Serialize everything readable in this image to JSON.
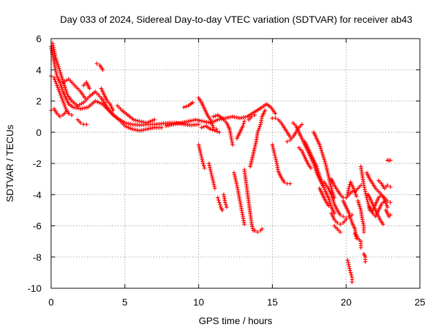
{
  "chart_data": {
    "type": "scatter",
    "title": "Day 033 of 2024, Sidereal Day-to-day VTEC variation (SDTVAR) for receiver ab43",
    "xlabel": "GPS time / hours",
    "ylabel": "SDTVAR / TECUs",
    "xlim": [
      0,
      25
    ],
    "ylim": [
      -10,
      6
    ],
    "xticks": [
      0,
      5,
      10,
      15,
      20,
      25
    ],
    "yticks": [
      -10,
      -8,
      -6,
      -4,
      -2,
      0,
      2,
      4,
      6
    ],
    "grid": true,
    "marker": "+",
    "series_color": "#ff0000",
    "segments": [
      [
        [
          0.0,
          5.5
        ],
        [
          0.1,
          5.0
        ],
        [
          0.2,
          4.5
        ],
        [
          0.3,
          4.0
        ],
        [
          0.4,
          3.6
        ],
        [
          0.6,
          3.2
        ],
        [
          0.8,
          2.6
        ],
        [
          1.0,
          2.2
        ],
        [
          1.2,
          1.8
        ],
        [
          1.5,
          1.6
        ],
        [
          2.0,
          1.5
        ],
        [
          2.5,
          1.6
        ],
        [
          3.0,
          2.0
        ],
        [
          3.5,
          1.8
        ],
        [
          4.0,
          1.3
        ],
        [
          4.5,
          0.9
        ],
        [
          5.0,
          0.6
        ],
        [
          5.5,
          0.5
        ],
        [
          6.0,
          0.45
        ],
        [
          6.5,
          0.5
        ],
        [
          7.0,
          0.5
        ],
        [
          7.5,
          0.55
        ],
        [
          8.0,
          0.6
        ],
        [
          8.5,
          0.6
        ],
        [
          9.0,
          0.5
        ],
        [
          9.5,
          0.45
        ],
        [
          10.0,
          0.5
        ]
      ],
      [
        [
          0.1,
          5.7
        ],
        [
          0.2,
          5.3
        ],
        [
          0.3,
          4.8
        ],
        [
          0.5,
          4.2
        ],
        [
          0.7,
          3.6
        ],
        [
          0.9,
          3.0
        ],
        [
          1.1,
          2.4
        ],
        [
          1.4,
          2.0
        ],
        [
          1.8,
          1.7
        ],
        [
          2.2,
          1.9
        ],
        [
          2.6,
          2.3
        ],
        [
          3.0,
          2.6
        ],
        [
          3.4,
          2.2
        ],
        [
          3.8,
          1.6
        ],
        [
          4.2,
          1.1
        ],
        [
          4.6,
          0.8
        ],
        [
          5.0,
          0.4
        ],
        [
          5.5,
          0.2
        ],
        [
          6.0,
          0.1
        ],
        [
          6.5,
          0.2
        ],
        [
          7.0,
          0.3
        ],
        [
          7.5,
          0.3
        ]
      ],
      [
        [
          0.0,
          3.6
        ],
        [
          0.2,
          3.5
        ],
        [
          0.4,
          3.0
        ],
        [
          0.6,
          2.5
        ],
        [
          0.8,
          2.0
        ],
        [
          1.0,
          1.5
        ],
        [
          1.2,
          1.2
        ],
        [
          1.4,
          1.1
        ]
      ],
      [
        [
          0.0,
          1.4
        ],
        [
          0.2,
          1.5
        ],
        [
          0.4,
          1.2
        ],
        [
          0.6,
          1.0
        ],
        [
          0.8,
          1.1
        ],
        [
          1.0,
          1.3
        ],
        [
          1.2,
          1.2
        ]
      ],
      [
        [
          0.8,
          3.2
        ],
        [
          1.2,
          3.4
        ],
        [
          1.6,
          3.0
        ],
        [
          2.0,
          2.6
        ],
        [
          2.3,
          2.2
        ]
      ],
      [
        [
          1.8,
          0.8
        ],
        [
          2.0,
          0.6
        ],
        [
          2.2,
          0.5
        ],
        [
          2.4,
          0.5
        ]
      ],
      [
        [
          2.2,
          3.0
        ],
        [
          2.4,
          3.2
        ],
        [
          2.6,
          2.8
        ]
      ],
      [
        [
          3.1,
          4.4
        ],
        [
          3.3,
          4.3
        ],
        [
          3.5,
          4.0
        ]
      ],
      [
        [
          3.4,
          2.8
        ],
        [
          3.6,
          2.4
        ],
        [
          3.8,
          2.0
        ],
        [
          4.0,
          1.8
        ],
        [
          4.2,
          1.4
        ]
      ],
      [
        [
          4.5,
          1.7
        ],
        [
          4.8,
          1.4
        ],
        [
          5.2,
          1.1
        ],
        [
          5.6,
          0.8
        ],
        [
          6.0,
          0.7
        ],
        [
          6.5,
          0.6
        ],
        [
          7.0,
          0.8
        ]
      ],
      [
        [
          7.8,
          0.4
        ],
        [
          8.3,
          0.5
        ],
        [
          8.8,
          0.6
        ],
        [
          9.3,
          0.7
        ],
        [
          9.8,
          0.8
        ],
        [
          10.3,
          0.7
        ],
        [
          10.8,
          0.6
        ],
        [
          11.3,
          0.8
        ],
        [
          11.8,
          0.9
        ],
        [
          12.3,
          1.0
        ],
        [
          12.8,
          0.9
        ],
        [
          13.3,
          1.0
        ],
        [
          13.8,
          1.3
        ],
        [
          14.3,
          1.6
        ],
        [
          14.6,
          1.8
        ],
        [
          14.9,
          1.6
        ],
        [
          15.2,
          1.2
        ]
      ],
      [
        [
          9.0,
          1.6
        ],
        [
          9.3,
          1.7
        ],
        [
          9.6,
          1.9
        ]
      ],
      [
        [
          10.0,
          2.2
        ],
        [
          10.2,
          1.9
        ],
        [
          10.4,
          1.5
        ],
        [
          10.6,
          1.1
        ],
        [
          10.8,
          0.8
        ],
        [
          11.0,
          0.3
        ],
        [
          11.2,
          0.2
        ]
      ],
      [
        [
          10.2,
          0.3
        ],
        [
          10.5,
          0.4
        ],
        [
          10.8,
          0.2
        ],
        [
          11.1,
          0.1
        ],
        [
          11.4,
          0.0
        ]
      ],
      [
        [
          10.0,
          -0.8
        ],
        [
          10.1,
          -1.2
        ],
        [
          10.2,
          -1.6
        ],
        [
          10.3,
          -2.0
        ],
        [
          10.4,
          -2.3
        ]
      ],
      [
        [
          10.7,
          -2.0
        ],
        [
          10.8,
          -2.4
        ],
        [
          10.9,
          -2.8
        ],
        [
          11.0,
          -3.2
        ],
        [
          11.1,
          -3.6
        ]
      ],
      [
        [
          11.0,
          1.0
        ],
        [
          11.3,
          1.1
        ],
        [
          11.6,
          0.9
        ],
        [
          11.9,
          0.6
        ],
        [
          12.1,
          0.2
        ],
        [
          12.2,
          -0.3
        ],
        [
          12.3,
          -0.8
        ]
      ],
      [
        [
          11.3,
          -4.2
        ],
        [
          11.4,
          -4.5
        ],
        [
          11.5,
          -4.8
        ],
        [
          11.6,
          -5.0
        ]
      ],
      [
        [
          11.7,
          -4.0
        ],
        [
          11.8,
          -4.5
        ],
        [
          11.9,
          -4.8
        ]
      ],
      [
        [
          12.4,
          -2.6
        ],
        [
          12.5,
          -3.0
        ],
        [
          12.6,
          -3.4
        ],
        [
          12.7,
          -3.9
        ],
        [
          12.8,
          -4.4
        ],
        [
          12.9,
          -4.9
        ],
        [
          13.0,
          -5.4
        ],
        [
          13.1,
          -5.9
        ]
      ],
      [
        [
          12.6,
          -0.4
        ],
        [
          12.8,
          0.0
        ],
        [
          13.0,
          0.4
        ],
        [
          13.1,
          0.7
        ]
      ],
      [
        [
          13.1,
          -2.4
        ],
        [
          13.2,
          -3.1
        ],
        [
          13.3,
          -3.8
        ],
        [
          13.4,
          -4.5
        ],
        [
          13.5,
          -5.2
        ],
        [
          13.6,
          -5.9
        ],
        [
          13.7,
          -6.3
        ],
        [
          13.8,
          -6.3
        ]
      ],
      [
        [
          13.4,
          0.8
        ],
        [
          13.6,
          1.0
        ],
        [
          13.8,
          1.1
        ]
      ],
      [
        [
          13.5,
          -2.2
        ],
        [
          13.7,
          -1.4
        ],
        [
          13.9,
          -0.6
        ],
        [
          14.0,
          0.0
        ],
        [
          14.2,
          0.5
        ],
        [
          14.3,
          1.0
        ],
        [
          14.5,
          1.4
        ]
      ],
      [
        [
          13.8,
          -6.3
        ],
        [
          14.0,
          -6.4
        ],
        [
          14.2,
          -6.3
        ],
        [
          14.3,
          -6.2
        ]
      ],
      [
        [
          15.0,
          0.9
        ],
        [
          15.2,
          0.9
        ],
        [
          15.4,
          0.8
        ],
        [
          15.6,
          0.6
        ],
        [
          15.8,
          0.3
        ],
        [
          16.0,
          0.0
        ],
        [
          16.2,
          -0.3
        ]
      ],
      [
        [
          15.0,
          -0.8
        ],
        [
          15.1,
          -1.2
        ],
        [
          15.2,
          -1.6
        ],
        [
          15.3,
          -2.0
        ],
        [
          15.4,
          -2.5
        ],
        [
          15.6,
          -2.9
        ],
        [
          15.8,
          -3.2
        ],
        [
          16.0,
          -3.3
        ],
        [
          16.2,
          -3.3
        ]
      ],
      [
        [
          16.0,
          -0.6
        ],
        [
          16.2,
          -0.5
        ],
        [
          16.4,
          -0.3
        ],
        [
          16.6,
          0.0
        ],
        [
          16.8,
          0.3
        ],
        [
          17.0,
          0.5
        ]
      ],
      [
        [
          16.4,
          0.6
        ],
        [
          16.6,
          0.4
        ],
        [
          16.8,
          0.0
        ],
        [
          17.0,
          -0.4
        ],
        [
          17.2,
          -0.8
        ],
        [
          17.4,
          -1.2
        ],
        [
          17.6,
          -1.6
        ],
        [
          17.8,
          -2.0
        ],
        [
          18.0,
          -2.6
        ],
        [
          18.2,
          -3.0
        ],
        [
          18.4,
          -3.4
        ]
      ],
      [
        [
          16.8,
          -1.0
        ],
        [
          17.0,
          -1.2
        ],
        [
          17.2,
          -1.6
        ],
        [
          17.4,
          -2.0
        ],
        [
          17.6,
          -2.3
        ]
      ],
      [
        [
          17.2,
          -0.6
        ],
        [
          17.4,
          -1.0
        ],
        [
          17.6,
          -1.4
        ],
        [
          17.8,
          -1.8
        ],
        [
          18.0,
          -2.2
        ],
        [
          18.2,
          -2.8
        ],
        [
          18.4,
          -3.3
        ],
        [
          18.6,
          -3.8
        ],
        [
          18.8,
          -4.2
        ],
        [
          19.0,
          -4.8
        ],
        [
          19.2,
          -5.2
        ]
      ],
      [
        [
          17.8,
          0.0
        ],
        [
          18.0,
          -0.4
        ],
        [
          18.2,
          -0.8
        ],
        [
          18.4,
          -1.4
        ],
        [
          18.6,
          -2.0
        ],
        [
          18.8,
          -2.8
        ],
        [
          19.0,
          -3.6
        ],
        [
          19.2,
          -4.2
        ]
      ],
      [
        [
          18.2,
          -3.6
        ],
        [
          18.4,
          -4.0
        ],
        [
          18.6,
          -4.4
        ],
        [
          18.8,
          -4.7
        ]
      ],
      [
        [
          19.0,
          -3.0
        ],
        [
          19.2,
          -3.4
        ],
        [
          19.4,
          -3.7
        ],
        [
          19.6,
          -4.0
        ],
        [
          19.8,
          -4.2
        ]
      ],
      [
        [
          19.0,
          -5.2
        ],
        [
          19.2,
          -5.6
        ],
        [
          19.4,
          -5.8
        ],
        [
          19.6,
          -5.9
        ],
        [
          19.8,
          -5.8
        ],
        [
          20.0,
          -5.6
        ]
      ],
      [
        [
          19.8,
          -4.4
        ],
        [
          20.0,
          -4.8
        ],
        [
          20.2,
          -5.2
        ],
        [
          20.4,
          -5.8
        ],
        [
          20.6,
          -6.2
        ],
        [
          20.7,
          -6.8
        ]
      ],
      [
        [
          20.1,
          -4.0
        ],
        [
          20.2,
          -3.5
        ],
        [
          20.3,
          -3.2
        ],
        [
          20.5,
          -3.6
        ],
        [
          20.7,
          -4.1
        ]
      ],
      [
        [
          20.1,
          -8.2
        ],
        [
          20.2,
          -8.6
        ],
        [
          20.3,
          -9.0
        ],
        [
          20.4,
          -9.3
        ],
        [
          20.4,
          -9.6
        ]
      ],
      [
        [
          20.6,
          -6.5
        ],
        [
          20.8,
          -6.8
        ],
        [
          21.0,
          -7.0
        ],
        [
          21.0,
          -7.4
        ]
      ],
      [
        [
          20.8,
          -4.4
        ],
        [
          21.0,
          -5.0
        ],
        [
          21.1,
          -5.6
        ],
        [
          21.2,
          -6.0
        ],
        [
          21.2,
          -6.4
        ]
      ],
      [
        [
          21.0,
          -2.2
        ],
        [
          21.1,
          -2.8
        ],
        [
          21.2,
          -3.4
        ],
        [
          21.3,
          -3.8
        ],
        [
          21.4,
          -4.2
        ],
        [
          21.5,
          -4.6
        ],
        [
          21.6,
          -5.0
        ]
      ],
      [
        [
          21.2,
          -7.8
        ],
        [
          21.3,
          -8.0
        ],
        [
          21.3,
          -8.3
        ]
      ],
      [
        [
          21.4,
          -2.6
        ],
        [
          21.6,
          -3.0
        ],
        [
          21.8,
          -3.3
        ],
        [
          22.0,
          -3.6
        ],
        [
          22.2,
          -3.8
        ],
        [
          22.4,
          -4.0
        ],
        [
          22.6,
          -4.2
        ],
        [
          22.8,
          -4.4
        ],
        [
          23.0,
          -4.5
        ]
      ],
      [
        [
          21.5,
          -4.0
        ],
        [
          21.7,
          -4.4
        ],
        [
          21.9,
          -4.8
        ],
        [
          22.1,
          -5.2
        ],
        [
          22.3,
          -5.6
        ],
        [
          22.5,
          -5.9
        ]
      ],
      [
        [
          21.8,
          -5.0
        ],
        [
          22.0,
          -4.6
        ],
        [
          22.2,
          -4.2
        ],
        [
          22.4,
          -4.0
        ],
        [
          22.6,
          -4.3
        ],
        [
          22.8,
          -4.8
        ]
      ],
      [
        [
          22.2,
          -3.1
        ],
        [
          22.4,
          -3.3
        ],
        [
          22.6,
          -3.6
        ],
        [
          22.8,
          -3.4
        ],
        [
          23.0,
          -3.5
        ]
      ],
      [
        [
          22.7,
          -5.0
        ],
        [
          22.8,
          -5.2
        ],
        [
          22.9,
          -5.4
        ],
        [
          23.0,
          -5.3
        ]
      ],
      [
        [
          22.8,
          -1.8
        ],
        [
          22.9,
          -1.8
        ],
        [
          23.0,
          -1.8
        ]
      ],
      [
        [
          18.5,
          -3.2
        ],
        [
          18.8,
          -3.6
        ],
        [
          19.0,
          -4.0
        ],
        [
          19.2,
          -4.6
        ],
        [
          19.4,
          -5.0
        ],
        [
          19.6,
          -5.3
        ],
        [
          19.8,
          -5.4
        ],
        [
          20.0,
          -5.5
        ],
        [
          20.2,
          -5.4
        ],
        [
          20.4,
          -5.3
        ]
      ],
      [
        [
          19.2,
          -6.0
        ],
        [
          19.4,
          -6.2
        ],
        [
          19.6,
          -6.4
        ]
      ],
      [
        [
          20.0,
          -4.2
        ],
        [
          20.2,
          -4.0
        ],
        [
          20.4,
          -3.8
        ],
        [
          20.6,
          -3.8
        ],
        [
          20.8,
          -3.6
        ],
        [
          21.0,
          -3.4
        ]
      ],
      [
        [
          21.6,
          -4.8
        ],
        [
          21.8,
          -5.2
        ],
        [
          22.0,
          -5.4
        ],
        [
          22.2,
          -5.0
        ],
        [
          22.4,
          -4.6
        ],
        [
          22.6,
          -4.4
        ]
      ]
    ]
  }
}
